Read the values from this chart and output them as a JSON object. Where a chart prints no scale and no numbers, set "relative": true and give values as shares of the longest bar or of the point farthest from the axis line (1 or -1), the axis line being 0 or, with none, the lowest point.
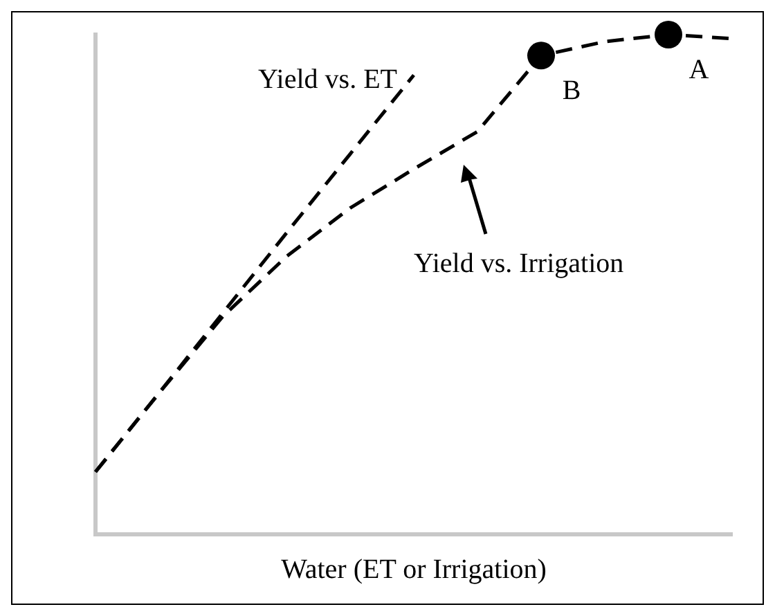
{
  "chart_data": {
    "type": "line",
    "relative": true,
    "xlabel": "Water (ET or Irrigation)",
    "categories": [
      null,
      null,
      null,
      null,
      null,
      null,
      null,
      null,
      null,
      null,
      null
    ],
    "line_style": "dashed",
    "marker": "none",
    "legend": false,
    "grid": false,
    "series": [
      {
        "name": "Yield vs. ET",
        "color": "#000000",
        "values": [
          0.125,
          0.283,
          0.443,
          0.603,
          0.761,
          0.919,
          null,
          null,
          null,
          null,
          null
        ]
      },
      {
        "name": "Yield vs. Irrigation",
        "color": "#000000",
        "values": [
          0.125,
          0.283,
          0.436,
          0.556,
          0.653,
          0.731,
          0.806,
          0.958,
          0.986,
          1,
          0.992
        ]
      }
    ],
    "annotations": [
      {
        "text": "B",
        "y": 0.958
      },
      {
        "text": "A",
        "y": 1
      }
    ]
  }
}
